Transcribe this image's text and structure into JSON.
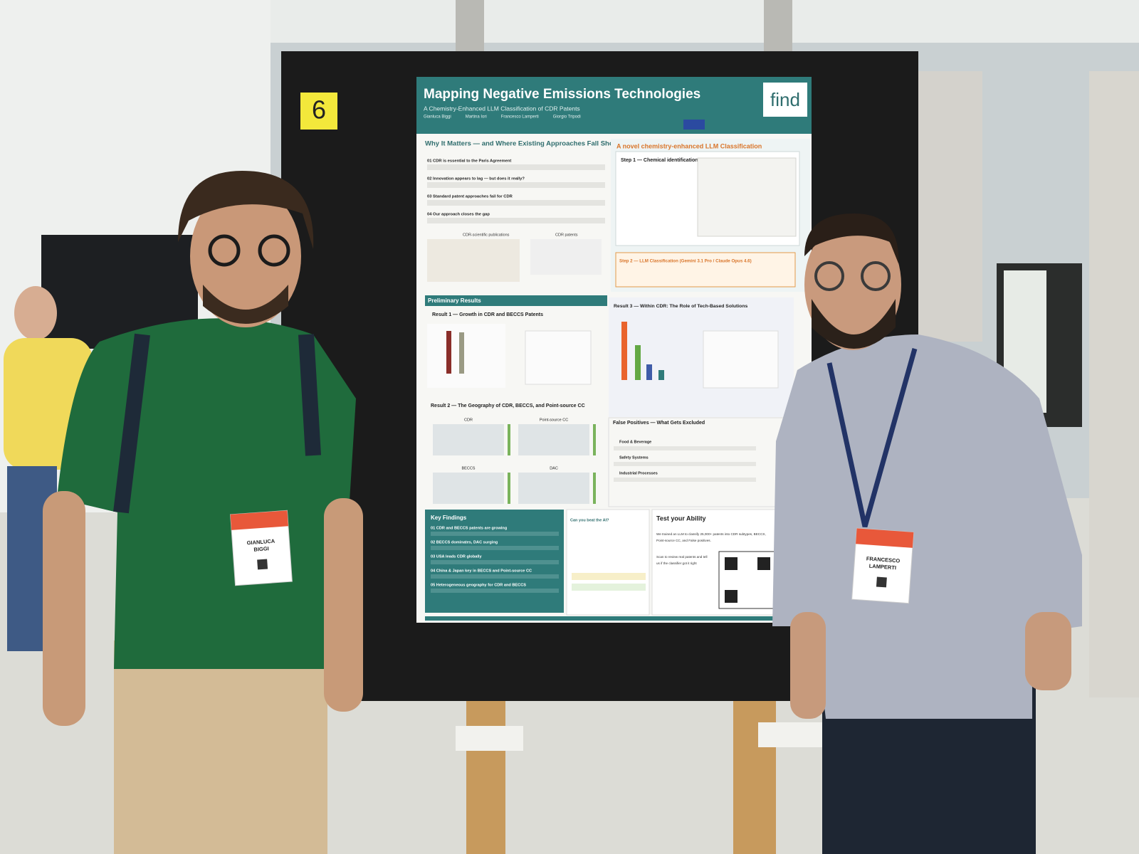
{
  "sign": {
    "number": "6"
  },
  "poster": {
    "title": "Mapping Negative Emissions Technologies",
    "subtitle": "A Chemistry-Enhanced LLM Classification of CDR Patents",
    "authors": [
      "Gianluca Biggi",
      "Martina Iori",
      "Francesco Lamperti",
      "Giorgio Tripodi"
    ],
    "logo": "find",
    "why": {
      "heading": "Why It Matters — and Where Existing Approaches Fall Short",
      "items": [
        "01 CDR is essential to the Paris Agreement",
        "02 Innovation appears to lag — but does it really?",
        "03 Standard patent approaches fail for CDR",
        "04 Our approach closes the gap"
      ],
      "chart_titles": [
        "CDR-scientific publications",
        "CDR patents"
      ]
    },
    "method": {
      "heading": "A novel chemistry-enhanced LLM Classification",
      "step1": "Step 1 — Chemical identification",
      "step2": "Step 2 — LLM Classification (Gemini 3.1 Pro / Claude Opus 4.6)"
    },
    "results": {
      "heading": "Preliminary Results",
      "result1": "Result 1 — Growth in CDR and BECCS Patents",
      "result2": "Result 2 — The Geography of CDR, BECCS, and Point-source CC",
      "result3": "Result 3 — Within CDR: The Role of Tech-Based Solutions",
      "maps": [
        "CDR",
        "Point-source CC",
        "BECCS",
        "DAC"
      ]
    },
    "false_positives": {
      "heading": "False Positives — What Gets Excluded",
      "items": [
        "Food & Beverage",
        "Safety Systems",
        "Industrial Processes"
      ]
    },
    "key_findings": {
      "heading": "Key Findings",
      "items": [
        "01 CDR and BECCS patents are growing",
        "02 BECCS dominates, DAC surging",
        "03 USA leads CDR globally",
        "04 China & Japan key in BECCS and Point-source CC",
        "05 Heterogeneous geography for CDR and BECCS"
      ]
    },
    "quiz": {
      "heading": "Can you beat the AI?"
    },
    "test": {
      "heading": "Test your Ability",
      "lines": [
        "We trained an LLM to classify 25,000+ patents into CDR subtypes, BECCS,",
        "Point-source CC, and False positives."
      ],
      "scan": [
        "Scan to review real patents and tell",
        "us if the classifier got it right"
      ]
    }
  },
  "badges": [
    {
      "lines": [
        "GIANLUCA",
        "BIGGI"
      ]
    },
    {
      "lines": [
        "FRANCESCO",
        "LAMPERTI"
      ]
    }
  ]
}
